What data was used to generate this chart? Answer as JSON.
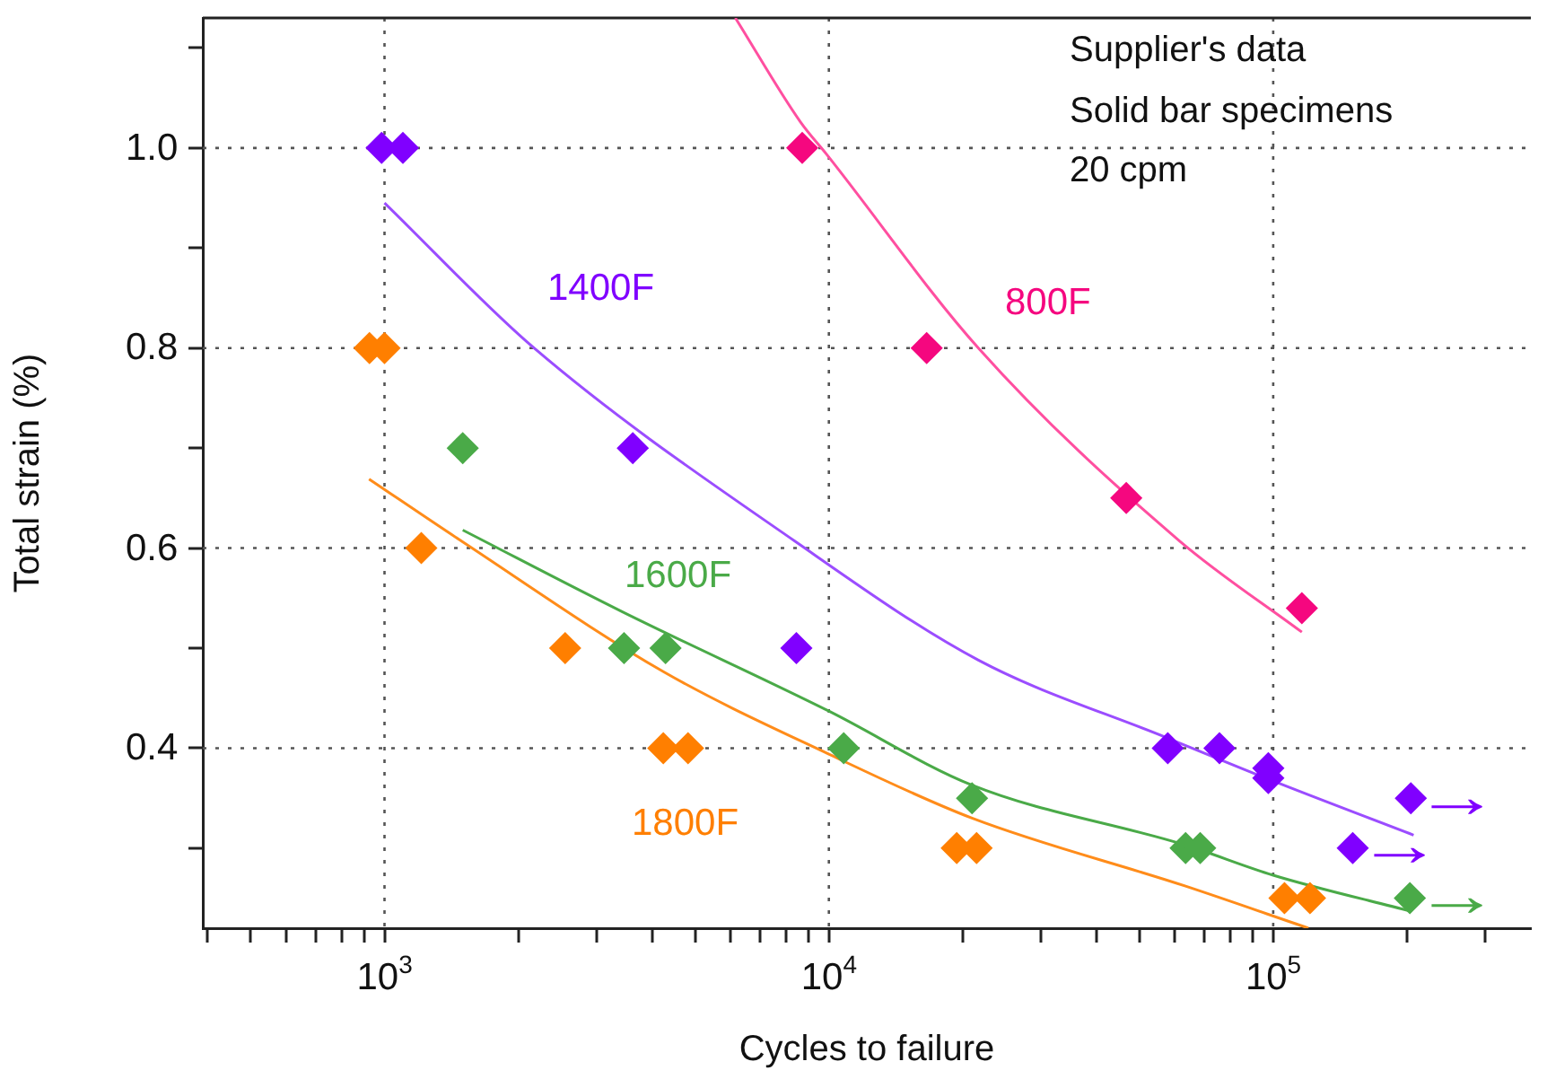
{
  "chart_data": {
    "type": "scatter",
    "xlabel": "Cycles to failure",
    "ylabel": "Total strain (%)",
    "log": "x",
    "marker": "diamond",
    "grid": true,
    "xlim": [
      390,
      380000
    ],
    "xticks": [
      {
        "value": 400,
        "label": null
      },
      {
        "value": 500,
        "label": null
      },
      {
        "value": 600,
        "label": null
      },
      {
        "value": 700,
        "label": null
      },
      {
        "value": 800,
        "label": null
      },
      {
        "value": 900,
        "label": null
      },
      {
        "value": 1000,
        "label": "10$^{3}$"
      },
      {
        "value": 2000,
        "label": null
      },
      {
        "value": 3000,
        "label": null
      },
      {
        "value": 4000,
        "label": null
      },
      {
        "value": 5000,
        "label": null
      },
      {
        "value": 6000,
        "label": null
      },
      {
        "value": 7000,
        "label": null
      },
      {
        "value": 8000,
        "label": null
      },
      {
        "value": 9000,
        "label": null
      },
      {
        "value": 10000,
        "label": "10$^{4}$"
      },
      {
        "value": 20000,
        "label": null
      },
      {
        "value": 30000,
        "label": null
      },
      {
        "value": 40000,
        "label": null
      },
      {
        "value": 50000,
        "label": null
      },
      {
        "value": 60000,
        "label": null
      },
      {
        "value": 70000,
        "label": null
      },
      {
        "value": 80000,
        "label": null
      },
      {
        "value": 90000,
        "label": null
      },
      {
        "value": 100000,
        "label": "10$^{5}$"
      },
      {
        "value": 200000,
        "label": null
      },
      {
        "value": 300000,
        "label": null
      }
    ],
    "ylim": [
      0.22,
      1.13
    ],
    "yticks": [
      {
        "value": 0.3,
        "label": null
      },
      0.4,
      {
        "value": 0.5,
        "label": null
      },
      0.6,
      {
        "value": 0.7,
        "label": null
      },
      0.8,
      {
        "value": 0.9,
        "label": null
      },
      {
        "value": 1,
        "label": "1.0"
      },
      {
        "value": 1.1,
        "label": null
      }
    ],
    "annotations": [
      "Supplier's data",
      "Solid bar specimens",
      "20 cpm",
      {
        "text": "→",
        "x": 204000,
        "y": 0.35
      },
      {
        "text": "→",
        "x": 151000,
        "y": 0.3
      },
      {
        "text": "→",
        "x": 203000,
        "y": 0.25
      }
    ],
    "series": [
      {
        "name": "800F",
        "color": "#f5077f",
        "x": [
          8710,
          16600,
          46700,
          116000
        ],
        "values": [
          1.0,
          0.8,
          0.65,
          0.54
        ]
      },
      {
        "name": "1400F",
        "color": "#8000ff",
        "x": [
          985,
          1100,
          3620,
          8450,
          57900,
          75700,
          97500,
          97500,
          204000,
          151000
        ],
        "values": [
          1.0,
          1.0,
          0.7,
          0.5,
          0.4,
          0.4,
          0.38,
          0.37,
          0.35,
          0.3
        ]
      },
      {
        "name": "1600F",
        "color": "#4aaa48",
        "x": [
          1500,
          3460,
          4290,
          10800,
          21000,
          63500,
          68500,
          203000
        ],
        "values": [
          0.7,
          0.5,
          0.5,
          0.4,
          0.35,
          0.3,
          0.3,
          0.25
        ]
      },
      {
        "name": "1800F",
        "color": "#ff7f00",
        "x": [
          925,
          1000,
          1210,
          2550,
          4240,
          4820,
          19400,
          21500,
          106000,
          121000
        ],
        "values": [
          0.8,
          0.8,
          0.6,
          0.5,
          0.4,
          0.4,
          0.3,
          0.3,
          0.25,
          0.25
        ]
      },
      {
        "type": "line",
        "marker": "none",
        "color": "#ff4fa0",
        "x": [
          6160,
          8630,
          9910,
          21700,
          61600,
          116000
        ],
        "values": [
          1.13,
          1.026,
          0.993,
          0.8,
          0.607,
          0.516
        ]
      },
      {
        "type": "line",
        "marker": "none",
        "color": "#9b4dff",
        "x": [
          1000,
          2170,
          8380,
          21700,
          57900,
          97500,
          207000
        ],
        "values": [
          0.945,
          0.8,
          0.607,
          0.488,
          0.41,
          0.369,
          0.313
        ]
      },
      {
        "type": "line",
        "marker": "none",
        "color": "#4aaa48",
        "x": [
          1500,
          3440,
          10000,
          21000,
          63500,
          100000,
          204000
        ],
        "values": [
          0.618,
          0.536,
          0.437,
          0.363,
          0.303,
          0.273,
          0.237
        ]
      },
      {
        "type": "line",
        "marker": "none",
        "color": "#ff8c1a",
        "x": [
          923,
          1490,
          4260,
          10000,
          21000,
          63500,
          120000
        ],
        "values": [
          0.669,
          0.607,
          0.476,
          0.394,
          0.33,
          0.262,
          0.22
        ]
      }
    ]
  }
}
